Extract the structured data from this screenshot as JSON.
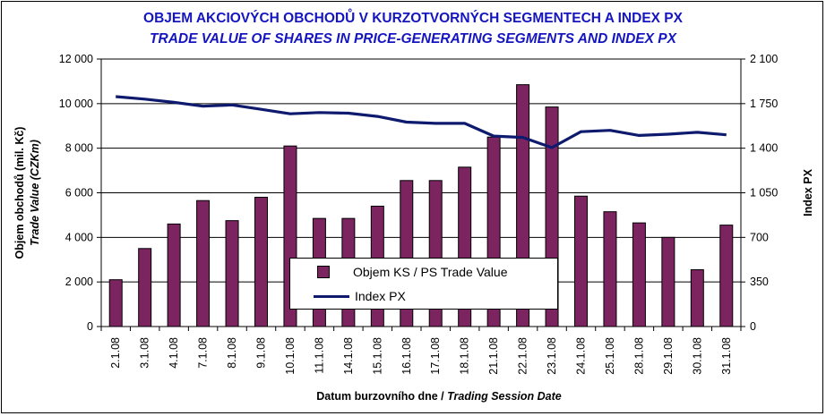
{
  "title_cz": "OBJEM AKCIOVÝCH OBCHODŮ V KURZOTVORNÝCH SEGMENTECH A INDEX PX",
  "title_en": "TRADE VALUE OF SHARES IN PRICE-GENERATING SEGMENTS AND INDEX PX",
  "legend": {
    "bars": "Objem KS / PS Trade Value",
    "line": "Index PX"
  },
  "chart_data": {
    "type": "bar+line",
    "categories": [
      "2.1.08",
      "3.1.08",
      "4.1.08",
      "7.1.08",
      "8.1.08",
      "9.1.08",
      "10.1.08",
      "11.1.08",
      "14.1.08",
      "15.1.08",
      "16.1.08",
      "17.1.08",
      "18.1.08",
      "21.1.08",
      "22.1.08",
      "23.1.08",
      "24.1.08",
      "25.1.08",
      "28.1.08",
      "29.1.08",
      "30.1.08",
      "31.1.08"
    ],
    "series": [
      {
        "name": "Objem KS / PS Trade Value",
        "type": "bar",
        "axis": "left",
        "values": [
          2100,
          3500,
          4600,
          5650,
          4750,
          5800,
          8100,
          4850,
          4850,
          5400,
          6550,
          6550,
          7150,
          8500,
          10850,
          9850,
          5850,
          5150,
          4650,
          4000,
          2550,
          4550
        ]
      },
      {
        "name": "Index PX",
        "type": "line",
        "axis": "right",
        "values": [
          1805,
          1785,
          1760,
          1730,
          1740,
          1705,
          1670,
          1680,
          1675,
          1650,
          1605,
          1595,
          1595,
          1495,
          1485,
          1405,
          1530,
          1540,
          1500,
          1510,
          1525,
          1505
        ]
      }
    ],
    "y_left": {
      "label_cz": "Objem obchodů (mil. Kč)",
      "label_en": "Trade Value (CZKm)",
      "min": 0,
      "max": 12000,
      "ticks": [
        0,
        2000,
        4000,
        6000,
        8000,
        10000,
        12000
      ],
      "tick_labels": [
        "0",
        "2 000",
        "4 000",
        "6 000",
        "8 000",
        "10 000",
        "12 000"
      ]
    },
    "y_right": {
      "label": "Index PX",
      "min": 0,
      "max": 2100,
      "ticks": [
        0,
        350,
        700,
        1050,
        1400,
        1750,
        2100
      ],
      "tick_labels": [
        "0",
        "350",
        "700",
        "1 050",
        "1 400",
        "1 750",
        "2 100"
      ]
    },
    "xlabel_cz": "Datum burzovního dne / ",
    "xlabel_en": "Trading Session Date",
    "colors": {
      "bar": "#7b2460",
      "line": "#0d1a6e",
      "grid": "#000000"
    }
  }
}
